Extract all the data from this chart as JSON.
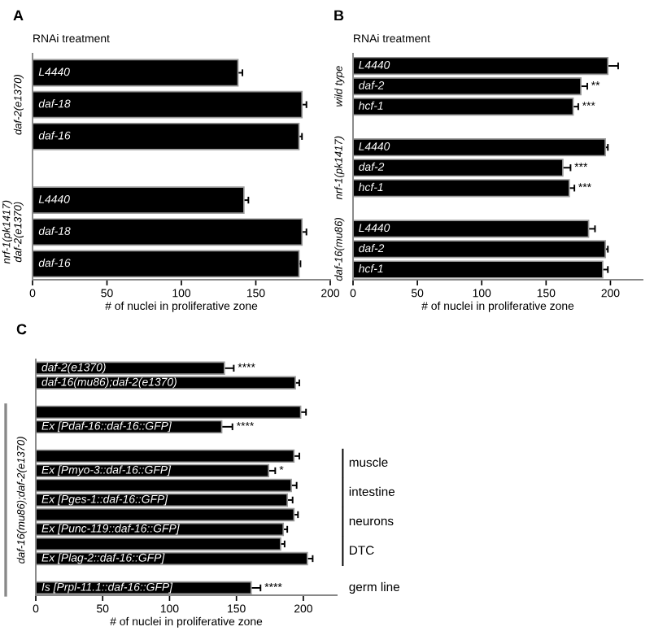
{
  "chart_data": [
    {
      "type": "bar",
      "orientation": "horizontal",
      "title": "A",
      "subtitle": "RNAi treatment",
      "xlabel": "# of nuclei in proliferative zone",
      "color": "#000000",
      "categories": [
        "L4440",
        "daf-18",
        "daf-16",
        null,
        "L4440",
        "daf-18",
        "daf-16"
      ],
      "values": [
        138,
        181,
        179,
        null,
        142,
        181,
        179
      ],
      "errors": [
        3,
        3,
        2,
        null,
        3,
        3,
        1
      ],
      "xlim": [
        0,
        200
      ],
      "xticks": [
        0,
        50,
        100,
        150,
        200
      ],
      "annotations": [
        "daf-2(e1370)",
        "nrf-1(pk1417)\ndaf-2(e1370)"
      ]
    },
    {
      "type": "bar",
      "orientation": "horizontal",
      "title": "B",
      "subtitle": "RNAi treatment",
      "xlabel": "# of nuclei in proliferative zone",
      "color": "#000000",
      "categories": [
        "L4440",
        "daf-2",
        "hcf-1",
        null,
        "L4440",
        "daf-2",
        "hcf-1",
        null,
        "L4440",
        "daf-2",
        "hcf-1"
      ],
      "values": [
        198,
        177,
        171,
        null,
        196,
        163,
        168,
        null,
        183,
        196,
        194
      ],
      "errors": [
        8,
        5,
        4,
        null,
        2,
        6,
        4,
        null,
        5,
        2,
        4
      ],
      "value_labels": [
        null,
        "**",
        "***",
        null,
        null,
        "***",
        "***",
        null,
        null,
        null,
        null
      ],
      "xlim": [
        0,
        225
      ],
      "xticks": [
        0,
        50,
        100,
        150,
        200
      ],
      "annotations": [
        "wild type",
        "nrf-1(pk1417)",
        "daf-16(mu86)"
      ]
    },
    {
      "type": "bar",
      "orientation": "horizontal",
      "title": "C",
      "xlabel": "# of nuclei in proliferative zone",
      "color": "#000000",
      "categories": [
        "daf-2(e1370)",
        "daf-16(mu86);daf-2(e1370)",
        null,
        null,
        "Ex [Pdaf-16::daf-16::GFP]",
        null,
        null,
        "Ex [Pmyo-3::daf-16::GFP]",
        null,
        "Ex [Pges-1::daf-16::GFP]",
        null,
        "Ex [Punc-119::daf-16::GFP]",
        null,
        "Ex [Plag-2::daf-16::GFP]",
        null,
        "Is [Prpl-11.1::daf-16::GFP]"
      ],
      "values": [
        141,
        194,
        null,
        198,
        139,
        null,
        193,
        174,
        191,
        188,
        193,
        185,
        183,
        203,
        null,
        161
      ],
      "errors": [
        7,
        3,
        null,
        4,
        8,
        null,
        4,
        5,
        4,
        4,
        3,
        3,
        3,
        4,
        null,
        7
      ],
      "value_labels": [
        "****",
        null,
        null,
        null,
        "****",
        null,
        null,
        "*",
        null,
        null,
        null,
        null,
        null,
        null,
        null,
        "****"
      ],
      "xlim": [
        0,
        225
      ],
      "xticks": [
        0,
        50,
        100,
        150,
        200
      ],
      "annotations": [
        "daf-16(mu86);daf-2(e1370)",
        "muscle",
        "intestine",
        "neurons",
        "DTC",
        "germ line"
      ]
    }
  ]
}
